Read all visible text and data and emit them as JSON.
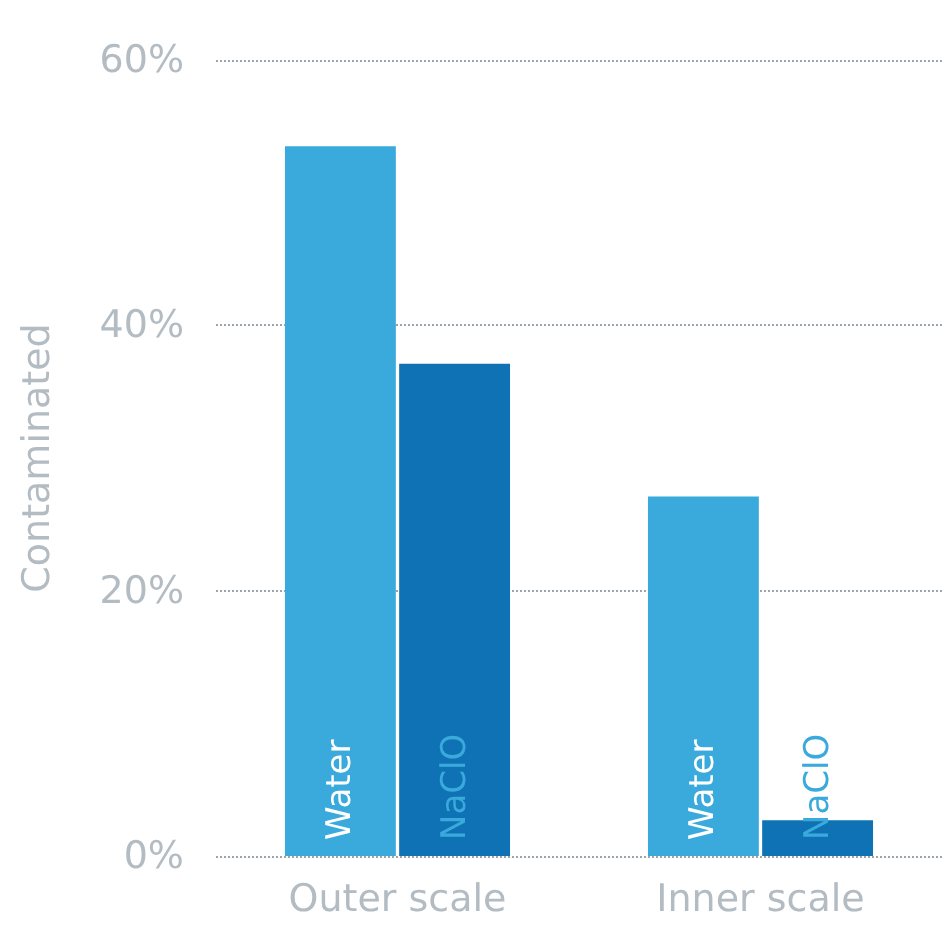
{
  "chart_data": {
    "type": "bar",
    "ylabel": "Contaminated",
    "categories": [
      "Outer scale",
      "Inner scale"
    ],
    "series": [
      {
        "name": "Water",
        "color": "#3aa9dc",
        "values": [
          53.5,
          27.1
        ]
      },
      {
        "name": "NaClO",
        "color": "#0e72b5",
        "values": [
          37.1,
          2.7
        ]
      }
    ],
    "ylim": [
      0,
      60
    ],
    "yticks": [
      {
        "value": 0,
        "label": "0%"
      },
      {
        "value": 20,
        "label": "20%"
      },
      {
        "value": 40,
        "label": "40%"
      },
      {
        "value": 60,
        "label": "60%"
      }
    ],
    "grid": "y",
    "legend": false
  }
}
